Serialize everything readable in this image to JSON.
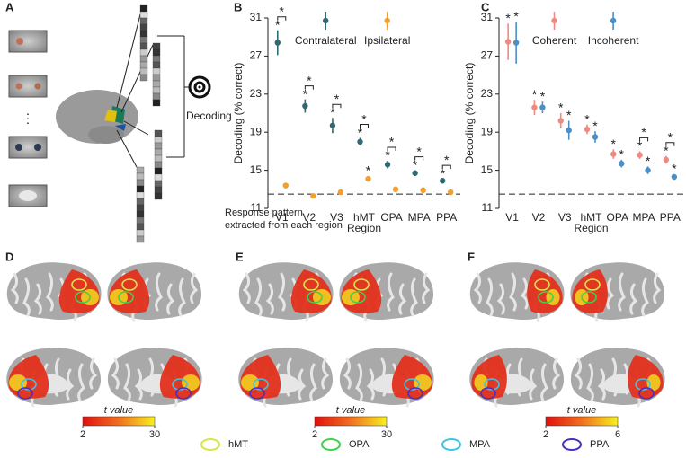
{
  "panel_labels": [
    "A",
    "B",
    "C",
    "D",
    "E",
    "F"
  ],
  "panel_a": {
    "ellipsis": "⋮",
    "decoder_label": "Decoding",
    "pattern_label": [
      "Response pattern",
      "extracted from each region"
    ]
  },
  "chart_data": [
    {
      "type": "errorbar",
      "categories": [
        "V1",
        "V2",
        "V3",
        "hMT",
        "OPA",
        "MPA",
        "PPA"
      ],
      "series": [
        {
          "name": "Contralateral",
          "color": "#2f6a72",
          "marker_color": "#4c9ca3",
          "values": [
            28.4,
            21.75,
            19.7,
            18.0,
            15.6,
            14.7,
            13.9
          ],
          "errors": [
            1.3,
            0.7,
            0.8,
            0.4,
            0.4,
            0.3,
            0.2
          ],
          "markers": [
            "*",
            "*",
            "*",
            "*",
            "*",
            "*",
            "*"
          ]
        },
        {
          "name": "Ipsilateral",
          "color": "#f2a02c",
          "marker_color": "#f2a02c",
          "values": [
            13.4,
            12.3,
            12.7,
            14.1,
            13.0,
            12.9,
            12.7
          ],
          "errors": [
            0.3,
            0.2,
            0.2,
            0.3,
            0.3,
            0.2,
            0.2
          ],
          "markers": [
            null,
            null,
            null,
            "*",
            null,
            null,
            null
          ]
        }
      ],
      "pair_labels": [
        "*",
        "*",
        "*",
        "*",
        "*",
        "*",
        "*"
      ],
      "ylim": [
        11,
        31
      ],
      "yticks": [
        11,
        15,
        19,
        23,
        27,
        31
      ],
      "reference_line": 12.5,
      "ylabel": "Decoding (% correct)",
      "xlabel": "Region",
      "legend": "upper center"
    },
    {
      "type": "errorbar",
      "categories": [
        "V1",
        "V2",
        "V3",
        "hMT",
        "OPA",
        "MPA",
        "PPA"
      ],
      "series": [
        {
          "name": "Coherent",
          "color": "#f08a80",
          "marker_color": "#f08a80",
          "values": [
            28.5,
            21.6,
            20.2,
            19.3,
            16.7,
            16.6,
            16.1
          ],
          "errors": [
            1.9,
            0.8,
            0.8,
            0.5,
            0.5,
            0.4,
            0.4
          ],
          "markers": [
            "*",
            "*",
            "*",
            "*",
            "*",
            "*",
            "*"
          ]
        },
        {
          "name": "Incoherent",
          "color": "#4b8fc6",
          "marker_color": "#4b8fc6",
          "values": [
            28.4,
            21.6,
            19.2,
            18.5,
            15.7,
            15.0,
            14.3
          ],
          "errors": [
            2.2,
            0.6,
            1.0,
            0.6,
            0.4,
            0.4,
            0.3
          ],
          "markers": [
            "*",
            "*",
            "*",
            "*",
            "*",
            "*",
            "*"
          ]
        }
      ],
      "pair_labels": [
        null,
        null,
        null,
        null,
        null,
        "*",
        "*"
      ],
      "ylim": [
        11,
        31
      ],
      "yticks": [
        11,
        15,
        19,
        23,
        27,
        31
      ],
      "reference_line": 12.5,
      "ylabel": "Decoding (% correct)",
      "xlabel": "Region",
      "legend": "upper center"
    }
  ],
  "colorbars": [
    {
      "label": "t value",
      "ticks": [
        2,
        30
      ]
    },
    {
      "label": "t value",
      "ticks": [
        2,
        30
      ]
    },
    {
      "label": "t value",
      "ticks": [
        2,
        6
      ]
    }
  ],
  "roi_legend": [
    {
      "name": "hMT",
      "color": "#d6e64a"
    },
    {
      "name": "OPA",
      "color": "#3ed24a"
    },
    {
      "name": "MPA",
      "color": "#3ec4e6"
    },
    {
      "name": "PPA",
      "color": "#4a2ec0"
    }
  ]
}
